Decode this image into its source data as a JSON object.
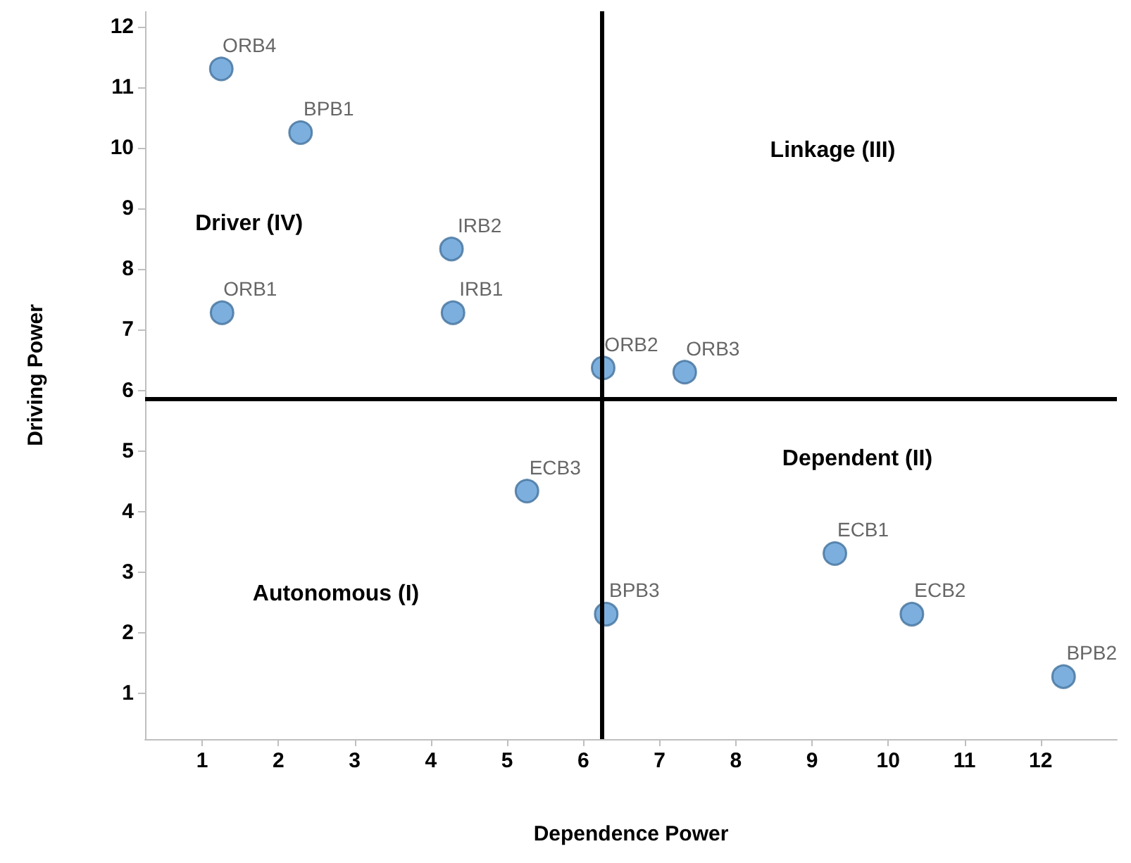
{
  "chart_data": {
    "type": "scatter",
    "xlabel": "Dependence Power",
    "ylabel": "Driving Power",
    "x": [
      1.25,
      2.29,
      4.27,
      1.26,
      4.29,
      6.26,
      7.33,
      5.26,
      9.3,
      6.3,
      10.31,
      12.3
    ],
    "values": [
      11.3,
      10.25,
      8.33,
      7.28,
      7.28,
      6.37,
      6.3,
      4.34,
      3.31,
      2.31,
      2.31,
      1.28
    ],
    "color": "#5b9bd5",
    "marker": "circle",
    "grid": false,
    "xlim": [
      0.25,
      13
    ],
    "xticks": [
      1,
      2,
      3,
      4,
      5,
      6,
      7,
      8,
      9,
      10,
      11,
      12
    ],
    "ylim": [
      0.25,
      12.25
    ],
    "yticks": [
      1,
      2,
      3,
      4,
      5,
      6,
      7,
      8,
      9,
      10,
      11,
      12
    ],
    "ref_lines": [
      {
        "axis": "x",
        "value": 6.25,
        "color": "#000000"
      },
      {
        "axis": "y",
        "value": 5.85,
        "color": "#000000"
      }
    ],
    "annotations": [
      {
        "text": "ORB4",
        "x": 1.25,
        "y": 11.3
      },
      {
        "text": "BPB1",
        "x": 2.29,
        "y": 10.25
      },
      {
        "text": "IRB2",
        "x": 4.27,
        "y": 8.33
      },
      {
        "text": "ORB1",
        "x": 1.26,
        "y": 7.28
      },
      {
        "text": "IRB1",
        "x": 4.29,
        "y": 7.28
      },
      {
        "text": "ORB2",
        "x": 6.26,
        "y": 6.37
      },
      {
        "text": "ORB3",
        "x": 7.33,
        "y": 6.3
      },
      {
        "text": "ECB3",
        "x": 5.26,
        "y": 4.34
      },
      {
        "text": "ECB1",
        "x": 9.3,
        "y": 3.31
      },
      {
        "text": "BPB3",
        "x": 6.3,
        "y": 2.31
      },
      {
        "text": "ECB2",
        "x": 10.31,
        "y": 2.31
      },
      {
        "text": "BPB2",
        "x": 12.3,
        "y": 1.28
      },
      "Linkage (III)",
      "Driver (IV)",
      "Dependent (II)",
      "Autonomous (I)"
    ]
  }
}
